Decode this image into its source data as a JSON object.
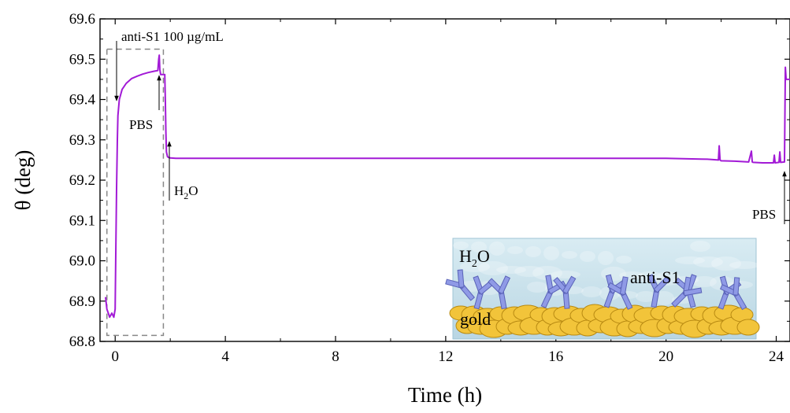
{
  "chart_data": {
    "type": "line",
    "xlabel": "Time (h)",
    "ylabel": "θ (deg)",
    "xlim": [
      -0.55,
      24.5
    ],
    "ylim": [
      68.8,
      69.6
    ],
    "xticks": [
      0,
      4,
      8,
      12,
      16,
      20,
      24
    ],
    "yticks": [
      68.8,
      68.9,
      69.0,
      69.1,
      69.2,
      69.3,
      69.4,
      69.5,
      69.6
    ],
    "ytick_labels": [
      "68.8",
      "68.9",
      "69.0",
      "69.1",
      "69.2",
      "69.3",
      "69.4",
      "69.5",
      "69.6"
    ],
    "grid": false,
    "line_color": "#a21ad6",
    "series": [
      {
        "x": [
          -0.35,
          -0.3,
          -0.25,
          -0.2,
          -0.12,
          -0.05,
          0.0,
          0.02,
          0.05,
          0.08,
          0.1,
          0.15,
          0.25,
          0.4,
          0.6,
          0.8,
          1.0,
          1.2,
          1.4,
          1.55,
          1.58,
          1.6,
          1.62,
          1.65,
          1.7,
          1.75,
          1.8,
          1.82,
          1.84,
          1.86,
          1.9,
          1.95,
          2.0,
          2.2,
          3.0,
          4.0,
          6.0,
          8.0,
          10.0,
          12.0,
          14.0,
          16.0,
          18.0,
          20.0,
          21.5,
          21.9,
          21.93,
          21.96,
          22.0,
          22.5,
          23.0,
          23.1,
          23.13,
          23.16,
          23.5,
          23.9,
          23.93,
          23.96,
          24.1,
          24.13,
          24.16,
          24.3,
          24.33,
          24.36,
          24.5
        ],
        "y": [
          68.91,
          68.88,
          68.87,
          68.86,
          68.87,
          68.86,
          68.88,
          69.0,
          69.18,
          69.3,
          69.36,
          69.4,
          69.425,
          69.44,
          69.452,
          69.458,
          69.463,
          69.467,
          69.47,
          69.472,
          69.5,
          69.51,
          69.475,
          69.462,
          69.462,
          69.462,
          69.462,
          69.4,
          69.32,
          69.27,
          69.258,
          69.256,
          69.255,
          69.254,
          69.254,
          69.254,
          69.254,
          69.254,
          69.254,
          69.254,
          69.254,
          69.254,
          69.254,
          69.254,
          69.252,
          69.25,
          69.285,
          69.25,
          69.248,
          69.247,
          69.245,
          69.272,
          69.245,
          69.244,
          69.243,
          69.243,
          69.262,
          69.243,
          69.244,
          69.27,
          69.244,
          69.245,
          69.48,
          69.45,
          69.45
        ]
      }
    ],
    "annotations": [
      {
        "text": "anti-S1 100 µg/mL",
        "arrow_to": [
          0.0,
          69.4
        ]
      },
      {
        "text": "PBS",
        "arrow_to": [
          1.55,
          69.47
        ]
      },
      {
        "text": "H",
        "sub": "2",
        "suffix": "O",
        "arrow_to": [
          1.9,
          69.26
        ]
      },
      {
        "text": "PBS",
        "arrow_to": [
          24.3,
          69.26
        ]
      }
    ],
    "dashed_box": {
      "x": [
        -0.3,
        1.75
      ],
      "y": [
        68.815,
        69.525
      ]
    },
    "inset": {
      "labels": {
        "water": "H",
        "water_sub": "2",
        "water_suffix": "O",
        "antibody": "anti-S1",
        "substrate": "gold"
      }
    }
  }
}
